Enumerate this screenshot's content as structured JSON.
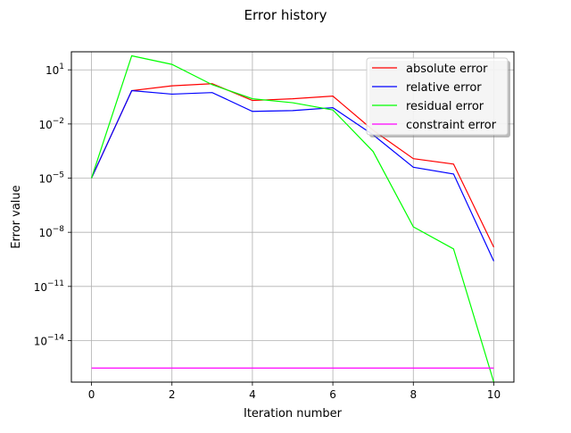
{
  "chart_data": {
    "type": "line",
    "title": "Error history",
    "xlabel": "Iteration number",
    "ylabel": "Error value",
    "y_scale": "log",
    "xlim": [
      -0.5,
      10.5
    ],
    "ylim": [
      5e-17,
      100
    ],
    "grid": true,
    "legend_position": "top-right",
    "x_ticks": [
      0,
      2,
      4,
      6,
      8,
      10
    ],
    "y_ticks": [
      {
        "base": "10",
        "exp": "1",
        "value": 10
      },
      {
        "base": "10",
        "exp": "−2",
        "value": 0.01
      },
      {
        "base": "10",
        "exp": "−5",
        "value": 1e-05
      },
      {
        "base": "10",
        "exp": "−8",
        "value": 1e-08
      },
      {
        "base": "10",
        "exp": "−11",
        "value": 1e-11
      },
      {
        "base": "10",
        "exp": "−14",
        "value": 1e-14
      }
    ],
    "x": [
      0,
      1,
      2,
      3,
      4,
      5,
      6,
      7,
      8,
      9,
      10
    ],
    "series": [
      {
        "name": "absolute error",
        "color": "#ff0000",
        "values": [
          1e-05,
          0.7,
          1.3,
          1.7,
          0.2,
          0.25,
          0.35,
          0.0045,
          0.00012,
          6e-05,
          1.5e-09
        ]
      },
      {
        "name": "relative error",
        "color": "#0000ff",
        "values": [
          1e-05,
          0.7,
          0.45,
          0.55,
          0.05,
          0.055,
          0.08,
          0.0025,
          4e-05,
          1.7e-05,
          2.5e-10
        ]
      },
      {
        "name": "residual error",
        "color": "#00ff00",
        "values": [
          1e-05,
          60,
          20,
          1.5,
          0.25,
          0.15,
          0.06,
          0.0003,
          2e-08,
          1.2e-09,
          5e-17
        ]
      },
      {
        "name": "constraint error",
        "color": "#ff00ff",
        "values": [
          3e-16,
          3e-16,
          3e-16,
          3e-16,
          3e-16,
          3e-16,
          3e-16,
          3e-16,
          3e-16,
          3e-16,
          3e-16
        ]
      }
    ]
  }
}
